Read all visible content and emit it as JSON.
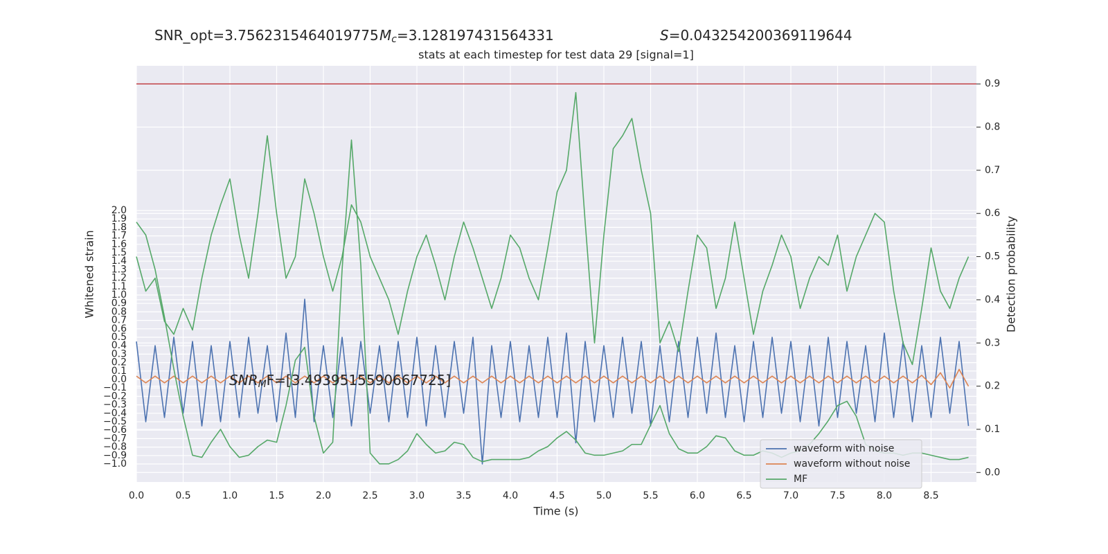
{
  "chart_data": {
    "type": "line",
    "title": "stats at each timestep for test data 29 [signal=1]",
    "annotations": [
      {
        "text": "SNR_opt=3.7562315464019775"
      },
      {
        "symbol": "M",
        "subscript": "c",
        "text": "=3.128197431564331"
      },
      {
        "symbol": "S",
        "text": "=0.043254200369119644"
      },
      {
        "symbol": "SNR",
        "subscript": "M",
        "text": "F=[3.4939515590667725]"
      }
    ],
    "xlabel": "Time (s)",
    "ylabel": "Whitened strain",
    "y2label": "Detection probability",
    "xlim": [
      0,
      8.985
    ],
    "ylim": [
      -1.213,
      3.713
    ],
    "y2lim": [
      -0.022,
      0.942
    ],
    "xticks": [
      {
        "value": 0,
        "label": "0.0"
      },
      0.5,
      {
        "value": 1,
        "label": "1.0"
      },
      1.5,
      {
        "value": 2,
        "label": "2.0"
      },
      2.5,
      {
        "value": 3,
        "label": "3.0"
      },
      3.5,
      {
        "value": 4,
        "label": "4.0"
      },
      4.5,
      {
        "value": 5,
        "label": "5.0"
      },
      5.5,
      {
        "value": 6,
        "label": "6.0"
      },
      6.5,
      {
        "value": 7,
        "label": "7.0"
      },
      7.5,
      {
        "value": 8,
        "label": "8.0"
      },
      8.5
    ],
    "yticks": [
      {
        "value": -1,
        "label": "−1.0"
      },
      {
        "value": -0.9,
        "label": "−0.9"
      },
      {
        "value": -0.8,
        "label": "−0.8"
      },
      {
        "value": -0.7,
        "label": "−0.7"
      },
      {
        "value": -0.6,
        "label": "−0.6"
      },
      {
        "value": -0.5,
        "label": "−0.5"
      },
      {
        "value": -0.4,
        "label": "−0.4"
      },
      {
        "value": -0.3,
        "label": "−0.3"
      },
      {
        "value": -0.2,
        "label": "−0.2"
      },
      {
        "value": -0.1,
        "label": "−0.1"
      },
      {
        "value": 0,
        "label": "0.0"
      },
      0.1,
      0.2,
      0.3,
      0.4,
      0.5,
      0.6,
      0.7,
      0.8,
      0.9,
      {
        "value": 1,
        "label": "1.0"
      },
      1.1,
      1.2,
      1.3,
      1.4,
      1.5,
      1.6,
      1.7,
      1.8,
      1.9,
      {
        "value": 2,
        "label": "2.0"
      }
    ],
    "y2ticks": [
      {
        "value": 0,
        "label": "0.0"
      },
      0.1,
      0.2,
      0.3,
      0.4,
      0.5,
      0.6,
      0.7,
      0.8,
      0.9
    ],
    "grid": true,
    "legend": "lower right",
    "threshold": {
      "value": 0.9,
      "axis": "y2",
      "color": "#c44e52"
    },
    "x": [
      0,
      0.1,
      0.2,
      0.3,
      0.4,
      0.5,
      0.6,
      0.7,
      0.8,
      0.9,
      1,
      1.1,
      1.2,
      1.3,
      1.4,
      1.5,
      1.6,
      1.7,
      1.8,
      1.9,
      2,
      2.1,
      2.2,
      2.3,
      2.4,
      2.5,
      2.6,
      2.7,
      2.8,
      2.9,
      3,
      3.1,
      3.2,
      3.3,
      3.4,
      3.5,
      3.6,
      3.7,
      3.8,
      3.9,
      4,
      4.1,
      4.2,
      4.3,
      4.4,
      4.5,
      4.6,
      4.7,
      4.8,
      4.9,
      5,
      5.1,
      5.2,
      5.3,
      5.4,
      5.5,
      5.6,
      5.7,
      5.8,
      5.9,
      6,
      6.1,
      6.2,
      6.3,
      6.4,
      6.5,
      6.6,
      6.7,
      6.8,
      6.9,
      7,
      7.1,
      7.2,
      7.3,
      7.4,
      7.5,
      7.6,
      7.7,
      7.8,
      7.9,
      8,
      8.1,
      8.2,
      8.3,
      8.4,
      8.5,
      8.6,
      8.7,
      8.8,
      8.9
    ],
    "series": [
      {
        "name": "waveform with noise",
        "color": "#4c72b0",
        "values": [
          0.45,
          -0.5,
          0.4,
          -0.45,
          0.5,
          -0.4,
          0.45,
          -0.55,
          0.4,
          -0.5,
          0.45,
          -0.45,
          0.5,
          -0.4,
          0.4,
          -0.5,
          0.55,
          -0.45,
          0.95,
          -0.5,
          0.4,
          -0.45,
          0.5,
          -0.55,
          0.45,
          -0.4,
          0.4,
          -0.5,
          0.45,
          -0.45,
          0.5,
          -0.55,
          0.4,
          -0.45,
          0.45,
          -0.4,
          0.5,
          -1.0,
          0.4,
          -0.45,
          0.45,
          -0.5,
          0.4,
          -0.45,
          0.5,
          -0.45,
          0.55,
          -0.75,
          0.45,
          -0.5,
          0.4,
          -0.45,
          0.5,
          -0.4,
          0.45,
          -0.55,
          0.4,
          -0.5,
          0.45,
          -0.45,
          0.5,
          -0.4,
          0.55,
          -0.45,
          0.4,
          -0.5,
          0.45,
          -0.45,
          0.5,
          -0.4,
          0.45,
          -0.5,
          0.4,
          -0.55,
          0.5,
          -0.45,
          0.45,
          -0.4,
          0.4,
          -0.5,
          0.55,
          -0.45,
          0.45,
          -0.5,
          0.4,
          -0.45,
          0.5,
          -0.4,
          0.45,
          -0.55
        ]
      },
      {
        "name": "waveform without noise",
        "color": "#dd8452",
        "values": [
          0.04,
          -0.04,
          0.04,
          -0.04,
          0.04,
          -0.04,
          0.04,
          -0.04,
          0.04,
          -0.04,
          0.04,
          -0.04,
          0.04,
          -0.04,
          0.04,
          -0.04,
          0.04,
          -0.04,
          0.04,
          -0.04,
          0.04,
          -0.04,
          0.04,
          -0.04,
          0.04,
          -0.04,
          0.04,
          -0.04,
          0.04,
          -0.04,
          0.04,
          -0.04,
          0.04,
          -0.04,
          0.04,
          -0.04,
          0.04,
          -0.04,
          0.04,
          -0.04,
          0.04,
          -0.04,
          0.04,
          -0.04,
          0.04,
          -0.04,
          0.04,
          -0.04,
          0.04,
          -0.04,
          0.04,
          -0.04,
          0.04,
          -0.04,
          0.04,
          -0.04,
          0.04,
          -0.04,
          0.04,
          -0.04,
          0.04,
          -0.04,
          0.04,
          -0.04,
          0.04,
          -0.04,
          0.04,
          -0.04,
          0.04,
          -0.04,
          0.04,
          -0.04,
          0.04,
          -0.04,
          0.04,
          -0.04,
          0.04,
          -0.04,
          0.04,
          -0.04,
          0.04,
          -0.04,
          0.04,
          -0.04,
          0.05,
          -0.06,
          0.08,
          -0.1,
          0.12,
          -0.08
        ]
      },
      {
        "color": "#55a868",
        "axis": "y2",
        "values": [
          0.5,
          0.42,
          0.45,
          0.35,
          0.32,
          0.38,
          0.33,
          0.45,
          0.55,
          0.62,
          0.68,
          0.55,
          0.45,
          0.6,
          0.78,
          0.6,
          0.45,
          0.5,
          0.68,
          0.6,
          0.5,
          0.42,
          0.5,
          0.62,
          0.58,
          0.5,
          0.45,
          0.4,
          0.32,
          0.42,
          0.5,
          0.55,
          0.48,
          0.4,
          0.5,
          0.58,
          0.52,
          0.45,
          0.38,
          0.45,
          0.55,
          0.52,
          0.45,
          0.4,
          0.52,
          0.65,
          0.7,
          0.88,
          0.58,
          0.3,
          0.55,
          0.75,
          0.78,
          0.82,
          0.7,
          0.6,
          0.3,
          0.35,
          0.28,
          0.42,
          0.55,
          0.52,
          0.38,
          0.45,
          0.58,
          0.45,
          0.32,
          0.42,
          0.48,
          0.55,
          0.5,
          0.38,
          0.45,
          0.5,
          0.48,
          0.55,
          0.42,
          0.5,
          0.55,
          0.6,
          0.58,
          0.42,
          0.3,
          0.25,
          0.38,
          0.52,
          0.42,
          0.38,
          0.45,
          0.5
        ]
      },
      {
        "name": "MF",
        "color": "#55a868",
        "axis": "y2",
        "values": [
          0.58,
          0.55,
          0.47,
          0.36,
          0.24,
          0.13,
          0.04,
          0.035,
          0.07,
          0.1,
          0.06,
          0.035,
          0.04,
          0.06,
          0.075,
          0.07,
          0.155,
          0.26,
          0.29,
          0.13,
          0.045,
          0.07,
          0.47,
          0.77,
          0.48,
          0.045,
          0.02,
          0.02,
          0.03,
          0.05,
          0.09,
          0.065,
          0.045,
          0.05,
          0.07,
          0.065,
          0.035,
          0.025,
          0.03,
          0.03,
          0.03,
          0.03,
          0.035,
          0.05,
          0.06,
          0.08,
          0.095,
          0.075,
          0.045,
          0.04,
          0.04,
          0.045,
          0.05,
          0.065,
          0.065,
          0.11,
          0.155,
          0.09,
          0.055,
          0.045,
          0.045,
          0.06,
          0.085,
          0.08,
          0.05,
          0.04,
          0.04,
          0.05,
          0.045,
          0.035,
          0.045,
          0.05,
          0.065,
          0.09,
          0.12,
          0.155,
          0.165,
          0.13,
          0.065,
          0.05,
          0.045,
          0.045,
          0.04,
          0.045,
          0.045,
          0.04,
          0.035,
          0.03,
          0.03,
          0.035
        ]
      }
    ]
  }
}
